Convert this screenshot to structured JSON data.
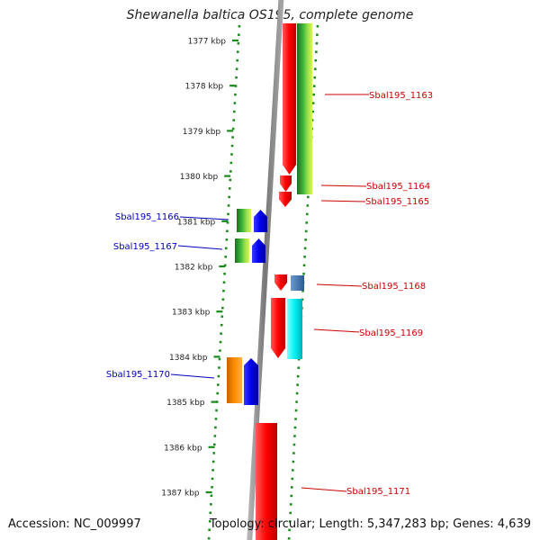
{
  "title": "Shewanella baltica OS195, complete genome",
  "accession": "Accession: NC_009997",
  "summary": "Topology: circular; Length: 5,347,283 bp; Genes: 4,639",
  "colors": {
    "backbone": "#888888",
    "dots": "#1a8a1a",
    "label_plus": "#cc0000",
    "label_minus": "#0000bb"
  },
  "ticks": [
    "1377 kbp",
    "1378 kbp",
    "1379 kbp",
    "1380 kbp",
    "1381 kbp",
    "1382 kbp",
    "1383 kbp",
    "1384 kbp",
    "1385 kbp",
    "1386 kbp",
    "1387 kbp"
  ],
  "genes": [
    {
      "name": "Sbal195_1163",
      "strand": "+"
    },
    {
      "name": "Sbal195_1164",
      "strand": "+"
    },
    {
      "name": "Sbal195_1165",
      "strand": "+"
    },
    {
      "name": "Sbal195_1166",
      "strand": "-"
    },
    {
      "name": "Sbal195_1167",
      "strand": "-"
    },
    {
      "name": "Sbal195_1168",
      "strand": "+"
    },
    {
      "name": "Sbal195_1169",
      "strand": "+"
    },
    {
      "name": "Sbal195_1170",
      "strand": "-"
    },
    {
      "name": "Sbal195_1171",
      "strand": "+"
    }
  ]
}
